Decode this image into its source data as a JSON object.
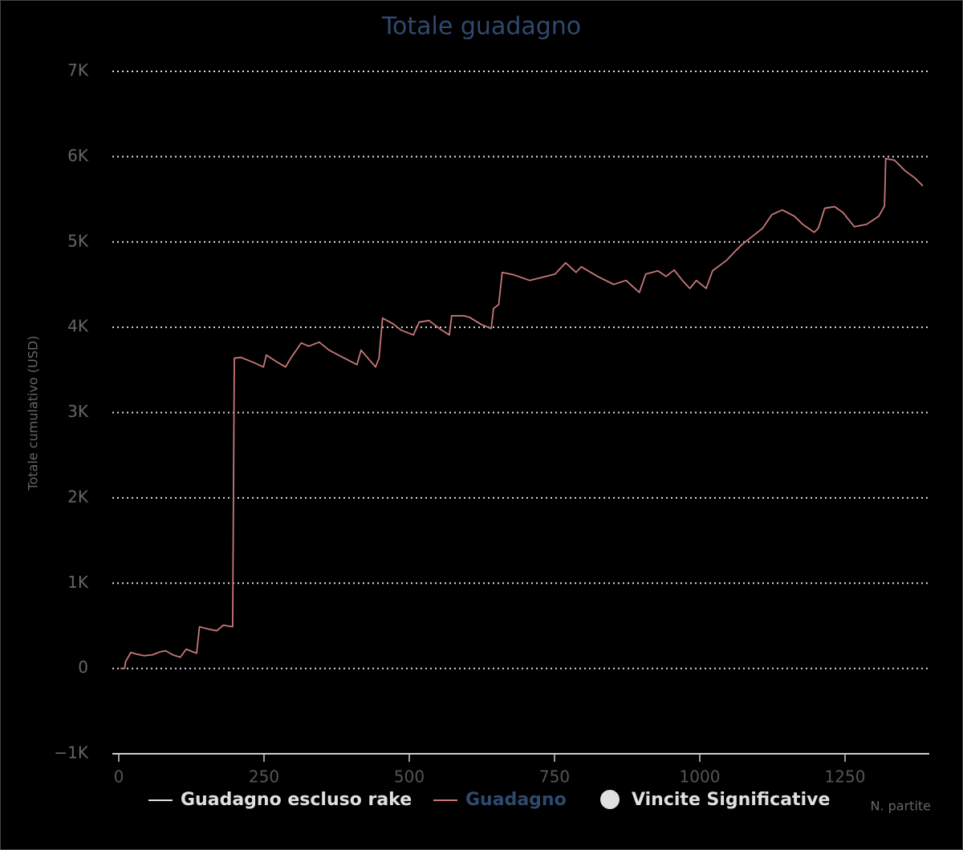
{
  "chart_data": {
    "type": "line",
    "title": "Totale guadagno",
    "y_label": "Totale cumulativo (USD)",
    "x_label": "N. partite",
    "xlim": [
      -11,
      1395
    ],
    "xticks": [
      0,
      250,
      500,
      750,
      1000,
      1250
    ],
    "ylim": [
      -1000,
      7000
    ],
    "yticks": [
      {
        "value": -1000,
        "label": "−1K"
      },
      0,
      {
        "value": 1000,
        "label": "1K"
      },
      {
        "value": 2000,
        "label": "2K"
      },
      {
        "value": 3000,
        "label": "3K"
      },
      {
        "value": 4000,
        "label": "4K"
      },
      {
        "value": 5000,
        "label": "5K"
      },
      {
        "value": 6000,
        "label": "6K"
      },
      {
        "value": 7000,
        "label": "7K"
      }
    ],
    "grid": true,
    "x": [
      3,
      10,
      12,
      21,
      30,
      44,
      58,
      72,
      81,
      93,
      106,
      116,
      134,
      139,
      155,
      169,
      180,
      196,
      199,
      210,
      231,
      249,
      254,
      273,
      287,
      296,
      314,
      327,
      345,
      362,
      383,
      410,
      417,
      442,
      448,
      454,
      472,
      486,
      507,
      517,
      534,
      552,
      569,
      573,
      594,
      604,
      624,
      641,
      645,
      654,
      660,
      680,
      707,
      735,
      751,
      769,
      787,
      796,
      824,
      852,
      873,
      896,
      907,
      928,
      942,
      956,
      970,
      983,
      994,
      1011,
      1022,
      1046,
      1059,
      1073,
      1087,
      1108,
      1124,
      1142,
      1163,
      1177,
      1197,
      1204,
      1215,
      1232,
      1246,
      1266,
      1287,
      1308,
      1318,
      1320,
      1335,
      1353,
      1370,
      1384
    ],
    "series": [
      {
        "name": "Guadagno escluso rake",
        "color": "#e0e0e0",
        "legend_color": "#e0e0e0",
        "marker": "line"
      },
      {
        "name": "Guadagno",
        "color": "#c87878",
        "legend_color": "#2e4a6e",
        "marker": "line",
        "values": [
          0,
          0,
          85,
          188,
          169,
          150,
          160,
          197,
          207,
          160,
          132,
          226,
          179,
          489,
          461,
          442,
          508,
          489,
          3637,
          3647,
          3590,
          3534,
          3675,
          3590,
          3534,
          3637,
          3816,
          3778,
          3825,
          3731,
          3656,
          3562,
          3731,
          3534,
          3637,
          4107,
          4041,
          3966,
          3910,
          4060,
          4079,
          3985,
          3910,
          4135,
          4135,
          4116,
          4032,
          3985,
          4220,
          4267,
          4643,
          4615,
          4549,
          4596,
          4624,
          4756,
          4643,
          4709,
          4596,
          4502,
          4549,
          4408,
          4624,
          4662,
          4596,
          4671,
          4549,
          4455,
          4549,
          4455,
          4662,
          4784,
          4878,
          4972,
          5047,
          5160,
          5320,
          5376,
          5301,
          5207,
          5113,
          5160,
          5395,
          5414,
          5348,
          5179,
          5207,
          5301,
          5423,
          5977,
          5959,
          5836,
          5752,
          5658
        ]
      },
      {
        "name": "Vincite Significative",
        "color": "#e0e0e0",
        "legend_color": "#e0e0e0",
        "marker": "circle"
      }
    ]
  }
}
